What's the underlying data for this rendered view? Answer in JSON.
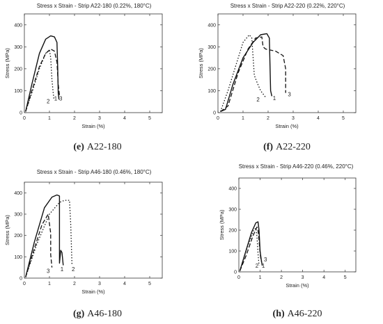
{
  "chart_data": [
    {
      "type": "line",
      "title": "Stress x Strain - Strip A22-180 (0.22%, 180°C)",
      "caption_letter": "(e)",
      "caption_text": "A22-180",
      "xlabel": "Strain (%)",
      "ylabel": "Stress (MPa)",
      "xlim": [
        0,
        5.5
      ],
      "ylim": [
        0,
        450
      ],
      "xticks": [
        0,
        1,
        2,
        3,
        4,
        5
      ],
      "yticks": [
        0,
        100,
        200,
        300,
        400
      ],
      "grid": false,
      "series": [
        {
          "label": "1",
          "style": "solid",
          "label_pos": [
            1.25,
            55
          ],
          "x": [
            0.05,
            0.3,
            0.6,
            0.85,
            1.05,
            1.2,
            1.3,
            1.33,
            1.35,
            1.38
          ],
          "y": [
            5,
            130,
            270,
            335,
            350,
            345,
            320,
            200,
            90,
            60
          ]
        },
        {
          "label": "2",
          "style": "dot",
          "label_pos": [
            0.95,
            42
          ],
          "x": [
            0.05,
            0.3,
            0.6,
            0.85,
            1.0,
            1.05,
            1.1,
            1.15,
            1.18
          ],
          "y": [
            5,
            90,
            200,
            270,
            285,
            250,
            150,
            90,
            60
          ]
        },
        {
          "label": "3",
          "style": "dash",
          "label_pos": [
            1.45,
            55
          ],
          "x": [
            0.05,
            0.3,
            0.6,
            0.85,
            1.05,
            1.2,
            1.3,
            1.35,
            1.4
          ],
          "y": [
            5,
            100,
            210,
            270,
            290,
            280,
            230,
            130,
            80
          ]
        }
      ]
    },
    {
      "type": "line",
      "title": "Stress x Strain - Strip A22-220 (0.22%, 220°C)",
      "caption_letter": "(f)",
      "caption_text": "A22-220",
      "xlabel": "Strain (%)",
      "ylabel": "Stress (MPa)",
      "xlim": [
        0,
        5.5
      ],
      "ylim": [
        0,
        450
      ],
      "xticks": [
        0,
        1,
        2,
        3,
        4,
        5
      ],
      "yticks": [
        0,
        100,
        200,
        300,
        400
      ],
      "grid": false,
      "series": [
        {
          "label": "1",
          "style": "solid",
          "label_pos": [
            2.25,
            57
          ],
          "x": [
            0.1,
            0.3,
            0.6,
            1.0,
            1.4,
            1.7,
            1.95,
            2.05,
            2.1,
            2.15
          ],
          "y": [
            5,
            15,
            130,
            250,
            320,
            355,
            360,
            340,
            100,
            75
          ]
        },
        {
          "label": "2",
          "style": "dot",
          "label_pos": [
            1.6,
            50
          ],
          "x": [
            0.1,
            0.4,
            0.7,
            1.0,
            1.25,
            1.35,
            1.45,
            1.55,
            1.7,
            1.9
          ],
          "y": [
            5,
            100,
            210,
            320,
            355,
            340,
            170,
            140,
            100,
            70
          ]
        },
        {
          "label": "3",
          "style": "dash",
          "label_pos": [
            2.85,
            75
          ],
          "x": [
            0.1,
            0.4,
            0.8,
            1.2,
            1.5,
            1.75,
            1.8,
            1.9,
            2.3,
            2.6,
            2.7,
            2.7
          ],
          "y": [
            5,
            30,
            180,
            290,
            340,
            345,
            300,
            290,
            280,
            260,
            200,
            90
          ]
        }
      ]
    },
    {
      "type": "line",
      "title": "Stress x Strain - Strip A46-180 (0.46%, 180°C)",
      "caption_letter": "(g)",
      "caption_text": "A46-180",
      "xlabel": "Strain (%)",
      "ylabel": "Stress (MPa)",
      "xlim": [
        0,
        5.5
      ],
      "ylim": [
        0,
        450
      ],
      "xticks": [
        0,
        1,
        2,
        3,
        4,
        5
      ],
      "yticks": [
        0,
        100,
        200,
        300,
        400
      ],
      "grid": false,
      "series": [
        {
          "label": "1",
          "style": "solid",
          "label_pos": [
            1.5,
            33
          ],
          "x": [
            0.05,
            0.4,
            0.8,
            1.1,
            1.3,
            1.4,
            1.4,
            1.45,
            1.5,
            1.55
          ],
          "y": [
            5,
            170,
            330,
            380,
            390,
            385,
            70,
            130,
            120,
            60
          ]
        },
        {
          "label": "2",
          "style": "dot",
          "label_pos": [
            1.95,
            33
          ],
          "x": [
            0.05,
            0.5,
            1.0,
            1.4,
            1.6,
            1.8,
            1.85,
            1.9
          ],
          "y": [
            5,
            160,
            300,
            355,
            365,
            365,
            250,
            60
          ]
        },
        {
          "label": "3",
          "style": "dash",
          "label_pos": [
            0.95,
            25
          ],
          "x": [
            0.05,
            0.35,
            0.7,
            0.95,
            1.05,
            1.05,
            1.1
          ],
          "y": [
            5,
            120,
            250,
            300,
            210,
            110,
            50
          ]
        }
      ]
    },
    {
      "type": "line",
      "title": "Stress x Strain - Strip A46-220 (0.46%, 220°C)",
      "caption_letter": "(h)",
      "caption_text": "A46-220",
      "xlabel": "Strain (%)",
      "ylabel": "Stress (MPa)",
      "xlim": [
        0,
        5.5
      ],
      "ylim": [
        0,
        450
      ],
      "xticks": [
        0,
        1,
        2,
        3,
        4,
        5
      ],
      "yticks": [
        0,
        100,
        200,
        300,
        400
      ],
      "grid": false,
      "series": [
        {
          "label": "1",
          "style": "solid",
          "label_pos": [
            1.15,
            20
          ],
          "x": [
            0.05,
            0.3,
            0.6,
            0.8,
            0.9,
            0.95,
            1.0,
            1.05,
            1.1
          ],
          "y": [
            5,
            90,
            190,
            235,
            240,
            200,
            100,
            60,
            30
          ]
        },
        {
          "label": "2",
          "style": "dot",
          "label_pos": [
            0.85,
            20
          ],
          "x": [
            0.05,
            0.4,
            0.7,
            0.8,
            0.85,
            0.9,
            0.95
          ],
          "y": [
            5,
            120,
            200,
            210,
            170,
            90,
            30
          ]
        },
        {
          "label": "3",
          "style": "dash",
          "label_pos": [
            1.25,
            50
          ],
          "x": [
            0.05,
            0.35,
            0.65,
            0.85,
            0.9,
            0.95,
            1.0,
            1.05
          ],
          "y": [
            5,
            80,
            170,
            215,
            200,
            150,
            90,
            50
          ]
        }
      ]
    }
  ]
}
